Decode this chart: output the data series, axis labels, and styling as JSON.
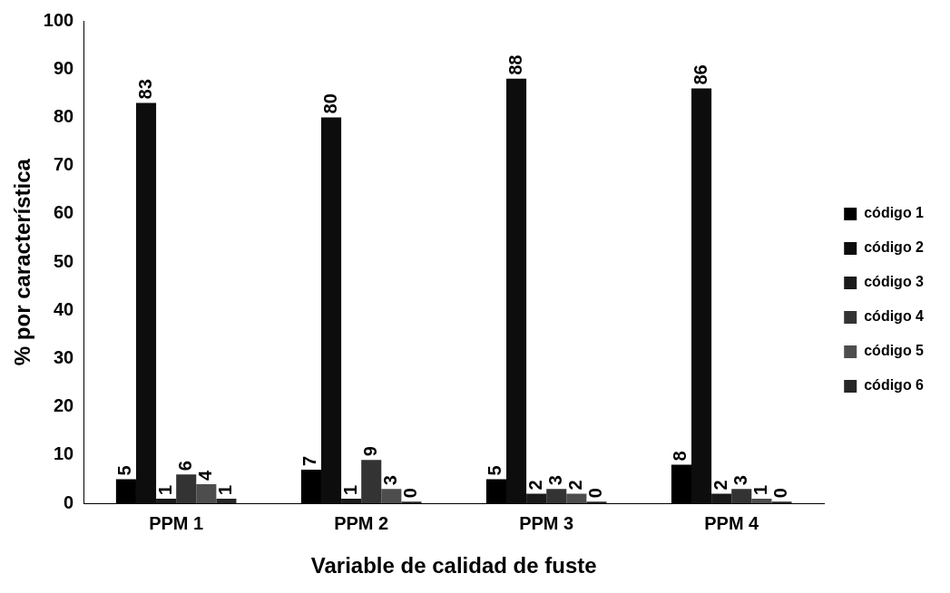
{
  "chart_data": {
    "type": "bar",
    "xlabel": "Variable de calidad de fuste",
    "ylabel": "% por característica",
    "categories": [
      "PPM 1",
      "PPM 2",
      "PPM 3",
      "PPM 4"
    ],
    "series": [
      {
        "name": "código 1",
        "color": "#000000",
        "values": [
          5,
          7,
          5,
          8
        ]
      },
      {
        "name": "código 2",
        "color": "#0d0d0d",
        "values": [
          83,
          80,
          88,
          86
        ]
      },
      {
        "name": "código 3",
        "color": "#1a1a1a",
        "values": [
          1,
          1,
          2,
          2
        ]
      },
      {
        "name": "código 4",
        "color": "#333333",
        "values": [
          6,
          9,
          3,
          3
        ]
      },
      {
        "name": "código 5",
        "color": "#4d4d4d",
        "values": [
          4,
          3,
          2,
          1
        ]
      },
      {
        "name": "código 6",
        "color": "#262626",
        "values": [
          1,
          0,
          0,
          0
        ]
      }
    ],
    "ylim": [
      0,
      100
    ],
    "yticks": [
      0,
      10,
      20,
      30,
      40,
      50,
      60,
      70,
      80,
      90,
      100
    ],
    "grid": false,
    "legend": "right",
    "data_labels": true
  }
}
